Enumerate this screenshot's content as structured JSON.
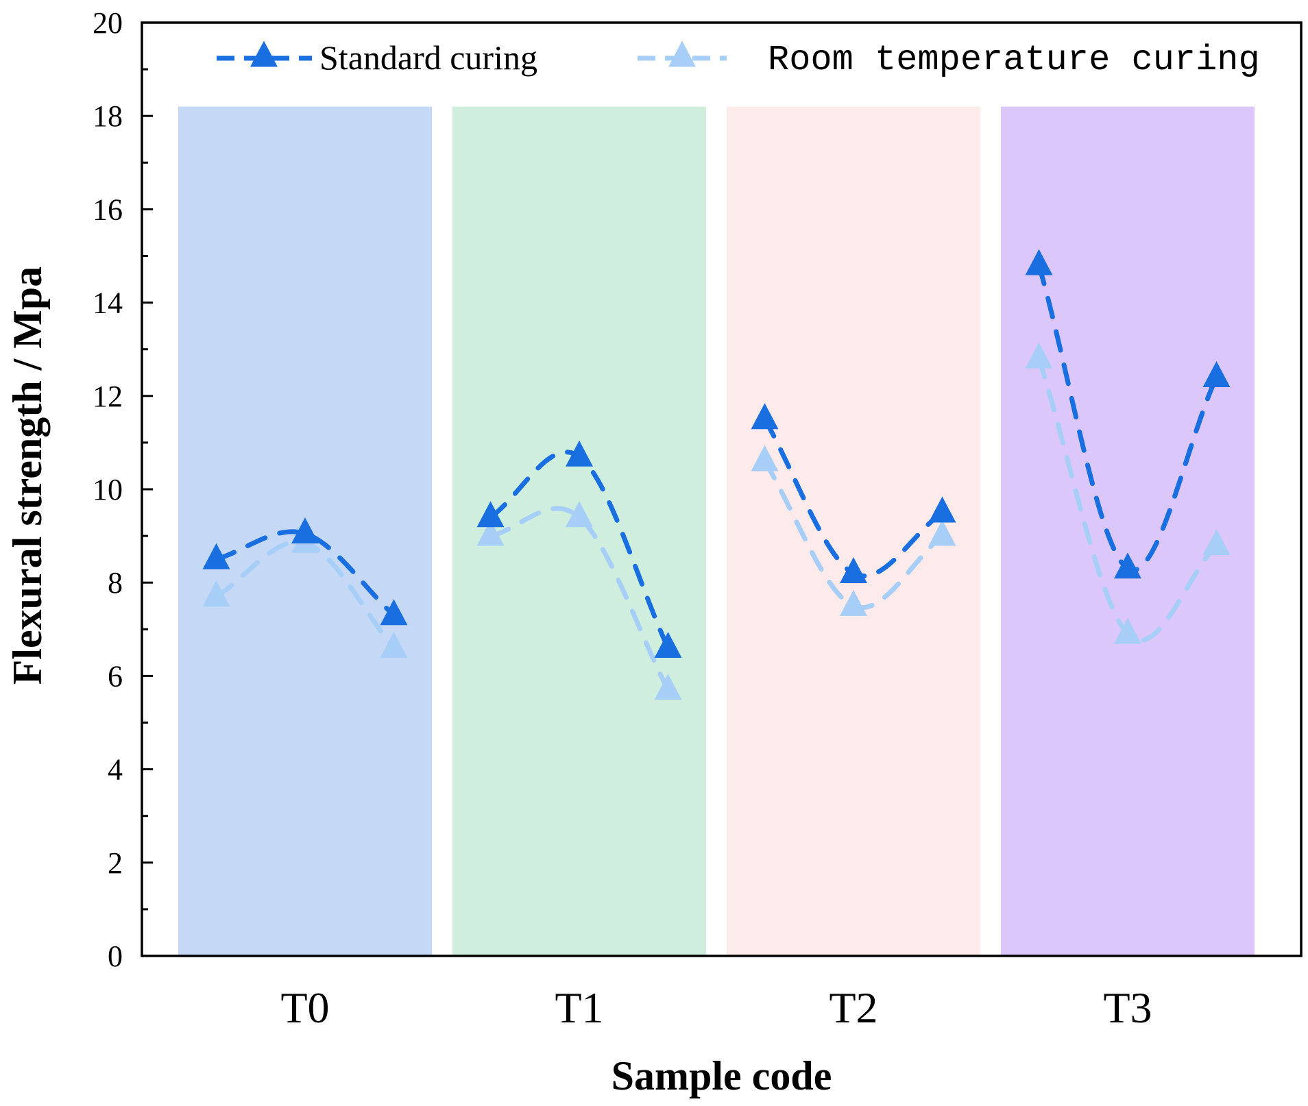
{
  "chart_data": {
    "type": "line",
    "xlabel": "Sample code",
    "ylabel": "Flexural strength / Mpa",
    "ylim": [
      0,
      20
    ],
    "yticks": [
      0,
      2,
      4,
      6,
      8,
      10,
      12,
      14,
      16,
      18,
      20
    ],
    "grid": false,
    "legend_position": "top",
    "groups": [
      {
        "label": "T0",
        "color": "#c5d9f6"
      },
      {
        "label": "T1",
        "color": "#cfeedd"
      },
      {
        "label": "T2",
        "color": "#fdeaea"
      },
      {
        "label": "T3",
        "color": "#dcc7fa"
      }
    ],
    "points_per_group": 3,
    "series": [
      {
        "name": "Standard curing",
        "color": "#1a6fe0",
        "marker": "triangle",
        "values": [
          [
            8.5,
            9.05,
            7.3
          ],
          [
            9.4,
            10.7,
            6.6
          ],
          [
            11.5,
            8.2,
            9.5
          ],
          [
            14.8,
            8.3,
            12.4
          ]
        ]
      },
      {
        "name": "Room temperature curing",
        "color": "#a7cef6",
        "marker": "triangle",
        "values": [
          [
            7.7,
            8.85,
            6.6
          ],
          [
            9.0,
            9.4,
            5.7
          ],
          [
            10.6,
            7.5,
            9.0
          ],
          [
            12.8,
            6.9,
            8.8
          ]
        ]
      }
    ]
  }
}
